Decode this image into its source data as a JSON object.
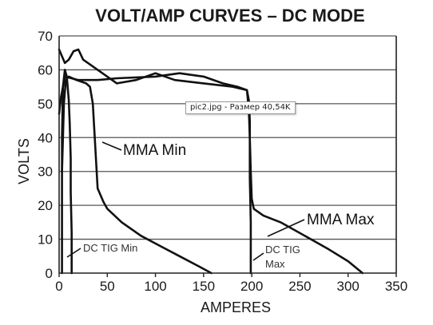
{
  "tooltip": "pic2.jpg - Размер 40,54K",
  "chart_data": {
    "type": "line",
    "title": "VOLT/AMP CURVES – DC MODE",
    "xlabel": "AMPERES",
    "ylabel": "VOLTS",
    "xlim": [
      0,
      350
    ],
    "ylim": [
      0,
      70
    ],
    "xticks": [
      "0",
      "50",
      "100",
      "150",
      "200",
      "250",
      "300",
      "350"
    ],
    "yticks": [
      "0",
      "10",
      "20",
      "30",
      "40",
      "50",
      "60",
      "70"
    ],
    "grid": "horizontal",
    "colors": {
      "line": "#111111",
      "grid": "#555555",
      "text": "#1a1a1a"
    },
    "series": [
      {
        "name": "DC TIG Min",
        "label_color": "#333333",
        "points": [
          [
            3,
            0
          ],
          [
            3,
            18
          ],
          [
            3,
            40
          ],
          [
            4,
            55
          ],
          [
            6,
            60
          ],
          [
            8,
            58
          ],
          [
            10,
            51
          ],
          [
            11,
            44
          ],
          [
            12,
            34
          ],
          [
            12,
            24
          ],
          [
            13,
            12
          ],
          [
            13,
            0
          ]
        ]
      },
      {
        "name": "MMA Min",
        "label_color": "#111111",
        "points": [
          [
            3,
            30
          ],
          [
            5,
            50
          ],
          [
            7,
            57
          ],
          [
            10,
            58
          ],
          [
            18,
            57
          ],
          [
            28,
            56
          ],
          [
            32,
            55
          ],
          [
            35,
            50
          ],
          [
            37,
            40
          ],
          [
            39,
            30
          ],
          [
            40,
            25
          ],
          [
            46,
            21
          ],
          [
            50,
            19
          ],
          [
            65,
            15
          ],
          [
            85,
            11
          ],
          [
            105,
            8
          ],
          [
            125,
            5
          ],
          [
            145,
            2
          ],
          [
            158,
            0
          ]
        ]
      },
      {
        "name": "DC TIG Max",
        "label_color": "#333333",
        "points": [
          [
            0,
            47
          ],
          [
            2,
            52
          ],
          [
            6,
            58
          ],
          [
            20,
            57
          ],
          [
            40,
            57
          ],
          [
            60,
            57.5
          ],
          [
            100,
            58
          ],
          [
            125,
            59
          ],
          [
            150,
            58
          ],
          [
            170,
            56
          ],
          [
            185,
            55
          ],
          [
            195,
            54
          ],
          [
            197,
            51
          ],
          [
            198,
            45
          ],
          [
            198,
            38
          ],
          [
            198,
            28
          ],
          [
            199,
            15
          ],
          [
            199,
            0
          ]
        ]
      },
      {
        "name": "MMA Max",
        "label_color": "#111111",
        "points": [
          [
            0,
            66
          ],
          [
            3,
            64
          ],
          [
            6,
            62
          ],
          [
            10,
            63
          ],
          [
            15,
            65.5
          ],
          [
            20,
            66
          ],
          [
            25,
            63
          ],
          [
            40,
            60
          ],
          [
            60,
            56
          ],
          [
            80,
            57
          ],
          [
            100,
            59
          ],
          [
            120,
            57
          ],
          [
            150,
            56
          ],
          [
            180,
            55
          ],
          [
            195,
            54
          ],
          [
            197,
            48
          ],
          [
            198,
            40
          ],
          [
            199,
            30
          ],
          [
            200,
            22
          ],
          [
            202,
            19
          ],
          [
            212,
            17
          ],
          [
            230,
            15
          ],
          [
            255,
            11
          ],
          [
            280,
            7
          ],
          [
            300,
            3.5
          ],
          [
            315,
            0
          ]
        ]
      }
    ]
  }
}
